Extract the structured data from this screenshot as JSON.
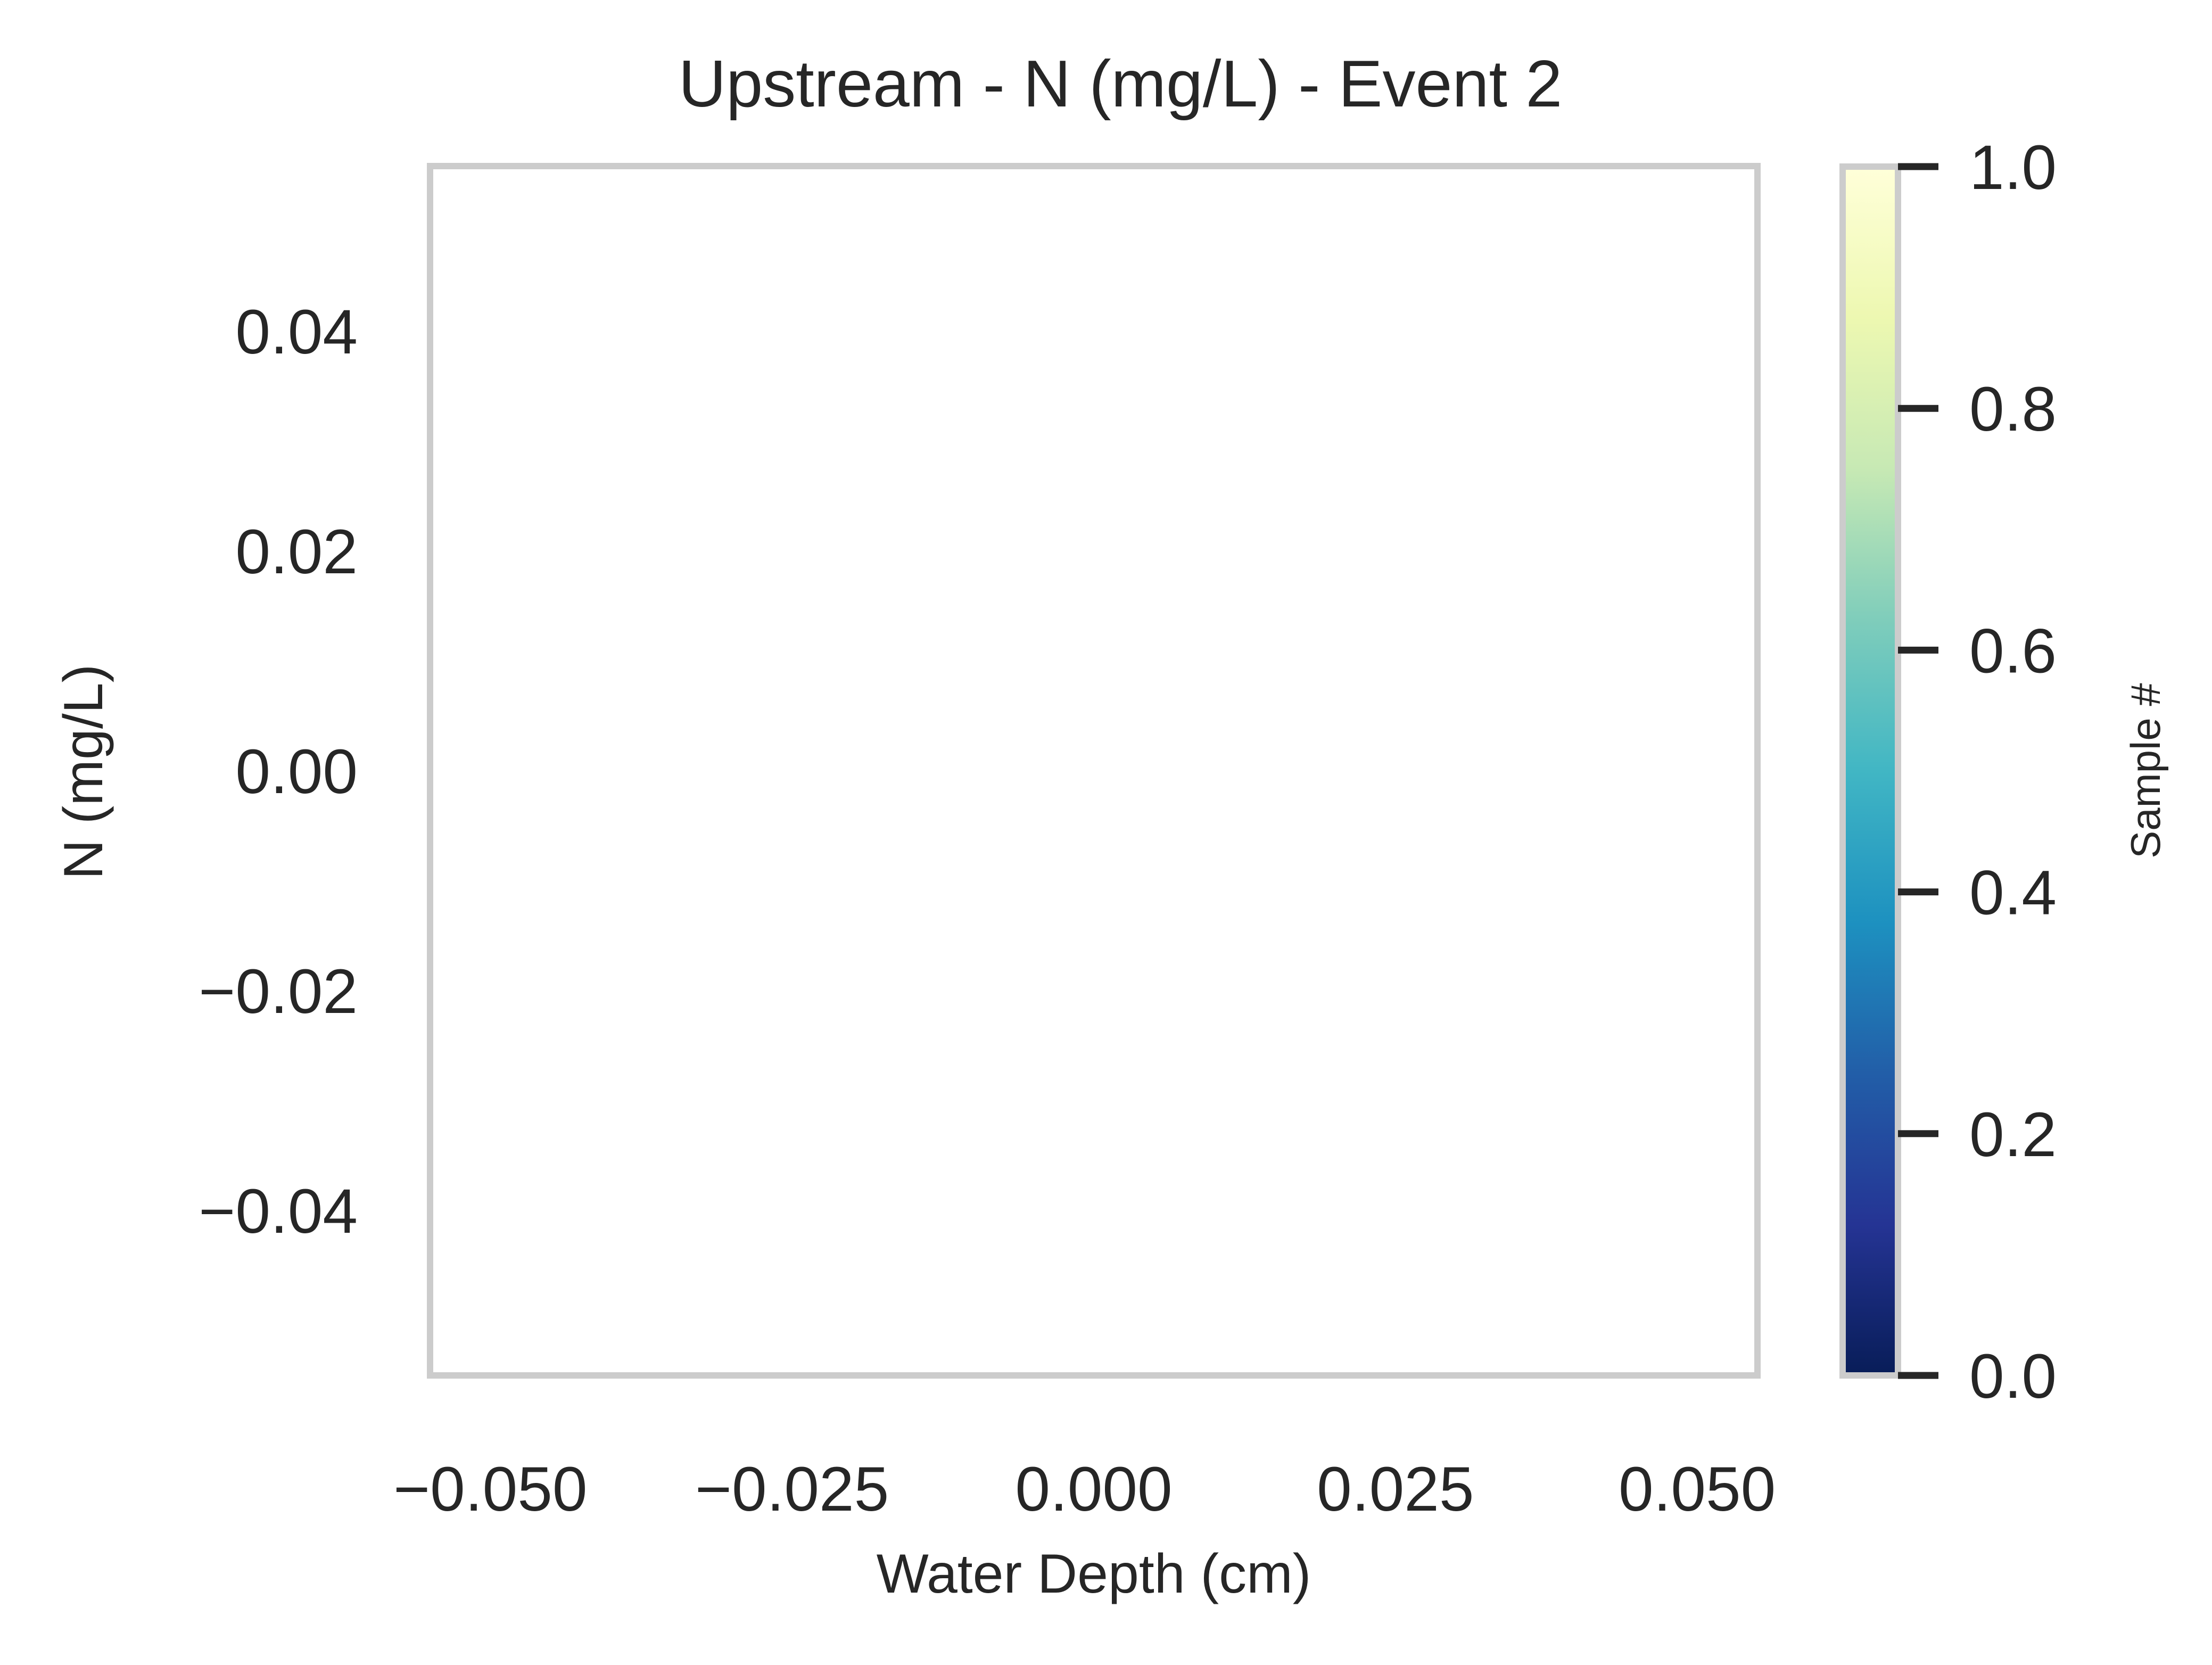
{
  "chart_data": {
    "type": "scatter",
    "title": "Upstream - N (mg/L) - Event 2",
    "xlabel": "Water Depth (cm)",
    "ylabel": "N (mg/L)",
    "xlim": [
      -0.055,
      0.055
    ],
    "ylim": [
      -0.055,
      0.055
    ],
    "xticks": [
      -0.05,
      -0.025,
      0.0,
      0.025,
      0.05
    ],
    "xtick_labels": [
      "−0.050",
      "−0.025",
      "0.000",
      "0.025",
      "0.050"
    ],
    "yticks": [
      -0.04,
      -0.02,
      0.0,
      0.02,
      0.04
    ],
    "ytick_labels": [
      "−0.04",
      "−0.02",
      "0.00",
      "0.02",
      "0.04"
    ],
    "grid": false,
    "points": [],
    "colorbar": {
      "label": "Sample #",
      "range": [
        0.0,
        1.0
      ],
      "ticks": [
        0.0,
        0.2,
        0.4,
        0.6,
        0.8,
        1.0
      ],
      "tick_labels": [
        "0.0",
        "0.2",
        "0.4",
        "0.6",
        "0.8",
        "1.0"
      ],
      "colormap": "YlGnBu",
      "colors_low_to_high": [
        "#081d58",
        "#253494",
        "#225ea8",
        "#1d91c0",
        "#41b6c4",
        "#7fcdbb",
        "#c7e9b4",
        "#edf8b1",
        "#ffffd9"
      ]
    },
    "frame_color": "#cccccc"
  }
}
